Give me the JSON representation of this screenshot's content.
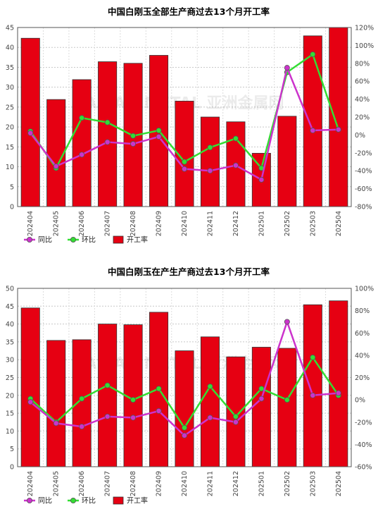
{
  "chart_data": [
    {
      "type": "bar",
      "title": "中国白刚玉全部生产商过去13个月开工率",
      "categories": [
        "202404",
        "202405",
        "202406",
        "202407",
        "202408",
        "202409",
        "202410",
        "202411",
        "202412",
        "202501",
        "202502",
        "202503",
        "202504"
      ],
      "ylim": [
        0,
        45
      ],
      "y_ticks": [
        "0",
        "5",
        "10",
        "15",
        "20",
        "25",
        "30",
        "35",
        "40",
        "45"
      ],
      "y2lim": [
        -80,
        120
      ],
      "y2_ticks": [
        "-80%",
        "-60%",
        "-40%",
        "-20%",
        "0%",
        "20%",
        "40%",
        "60%",
        "80%",
        "100%",
        "120%"
      ],
      "series": [
        {
          "name": "开工率",
          "axis": "left",
          "kind": "bar",
          "color": "#e60012",
          "values": [
            42.3,
            26.9,
            31.9,
            36.4,
            36.0,
            38.0,
            26.5,
            22.5,
            21.3,
            13.4,
            22.7,
            42.9,
            45.0
          ]
        },
        {
          "name": "同比",
          "axis": "right",
          "kind": "line",
          "color": "#cc33cc",
          "values": [
            2,
            -35,
            -22,
            -8,
            -10,
            -2,
            -38,
            -40,
            -34,
            -50,
            75,
            5,
            6
          ]
        },
        {
          "name": "环比",
          "axis": "right",
          "kind": "line",
          "color": "#33dd33",
          "values": [
            4,
            -37,
            19,
            14,
            -1,
            5,
            -30,
            -14,
            -4,
            -37,
            70,
            90,
            6
          ]
        }
      ],
      "legend": [
        "同比",
        "环比",
        "开工率"
      ],
      "legend_position": "bottom-left",
      "watermark": "ASIAN METAL 亚洲金属网"
    },
    {
      "type": "bar",
      "title": "中国白刚玉在产生产商过去13个月开工率",
      "categories": [
        "202404",
        "202405",
        "202406",
        "202407",
        "202408",
        "202409",
        "202410",
        "202411",
        "202412",
        "202501",
        "202502",
        "202503",
        "202504"
      ],
      "ylim": [
        0,
        50
      ],
      "y_ticks": [
        "0",
        "5",
        "10",
        "15",
        "20",
        "25",
        "30",
        "35",
        "40",
        "45",
        "50"
      ],
      "y2lim": [
        -60,
        100
      ],
      "y2_ticks": [
        "-60%",
        "-40%",
        "-20%",
        "0%",
        "20%",
        "40%",
        "60%",
        "80%",
        "100%"
      ],
      "series": [
        {
          "name": "开工率",
          "axis": "left",
          "kind": "bar",
          "color": "#e60012",
          "values": [
            44.5,
            35.4,
            35.6,
            40.0,
            39.8,
            43.3,
            32.5,
            36.4,
            30.8,
            33.5,
            33.2,
            45.4,
            46.5
          ]
        },
        {
          "name": "同比",
          "axis": "right",
          "kind": "line",
          "color": "#cc33cc",
          "values": [
            -2,
            -21,
            -24,
            -15,
            -16,
            -10,
            -32,
            -16,
            -20,
            1,
            70,
            4,
            6
          ]
        },
        {
          "name": "环比",
          "axis": "right",
          "kind": "line",
          "color": "#33dd33",
          "values": [
            1,
            -20,
            1,
            13,
            0,
            10,
            -25,
            12,
            -15,
            10,
            0,
            38,
            4
          ]
        }
      ],
      "legend": [
        "同比",
        "环比",
        "开工率"
      ],
      "legend_position": "bottom-left",
      "watermark": "ASIAN METAL 亚洲金属网"
    }
  ]
}
